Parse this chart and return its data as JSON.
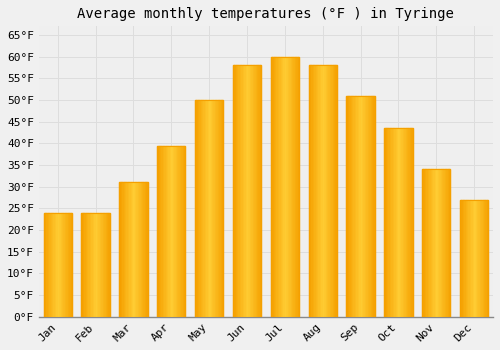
{
  "title": "Average monthly temperatures (°F ) in Tyringe",
  "months": [
    "Jan",
    "Feb",
    "Mar",
    "Apr",
    "May",
    "Jun",
    "Jul",
    "Aug",
    "Sep",
    "Oct",
    "Nov",
    "Dec"
  ],
  "values": [
    24.0,
    24.0,
    31.0,
    39.5,
    50.0,
    58.0,
    60.0,
    58.0,
    51.0,
    43.5,
    34.0,
    27.0
  ],
  "bar_color_center": "#FFCC33",
  "bar_color_edge": "#F5A000",
  "background_color": "#F0F0F0",
  "plot_bg_color": "#EFEFEF",
  "grid_color": "#DDDDDD",
  "ylim": [
    0,
    67
  ],
  "yticks": [
    0,
    5,
    10,
    15,
    20,
    25,
    30,
    35,
    40,
    45,
    50,
    55,
    60,
    65
  ],
  "title_fontsize": 10,
  "tick_fontsize": 8,
  "tick_font_family": "monospace",
  "bar_width": 0.75
}
